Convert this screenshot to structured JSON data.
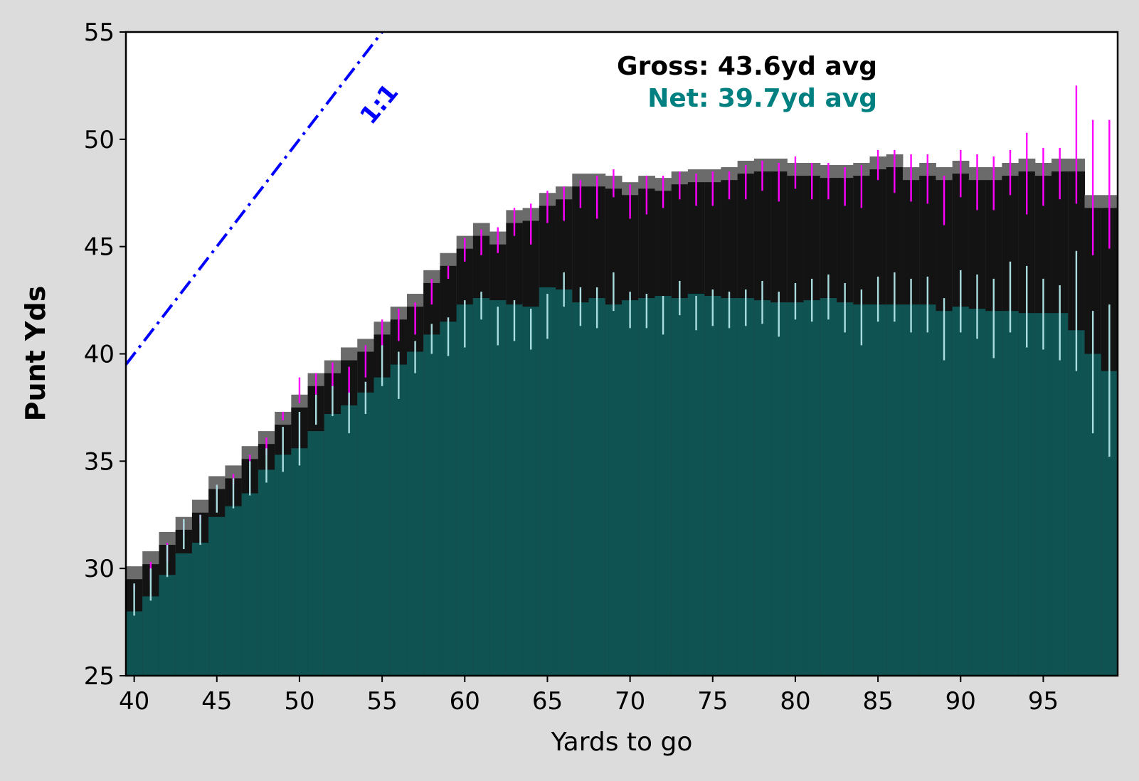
{
  "chart_data": {
    "type": "bar",
    "xlabel": "Yards to go",
    "ylabel": "Punt Yds",
    "xlim": [
      39.5,
      99.5
    ],
    "ylim": [
      25,
      55
    ],
    "xticks": [
      "40",
      "45",
      "50",
      "55",
      "60",
      "65",
      "70",
      "75",
      "80",
      "85",
      "90",
      "95"
    ],
    "yticks": [
      "25",
      "30",
      "35",
      "40",
      "45",
      "50",
      "55"
    ],
    "grid": false,
    "reference_line": {
      "label": "1:1",
      "style": "dashed",
      "color": "#0000ff",
      "slope": 1,
      "intercept": 0
    },
    "annotations": {
      "gross": "Gross: 43.6yd avg",
      "net": "Net: 39.7yd avg"
    },
    "colors": {
      "background": "#dcdcdc",
      "plot_background": "#ffffff",
      "gross_bar": "#0a0a0a",
      "gross_band": "#6b6b6b",
      "net_bar": "#0f5656",
      "gross_error": "#ff00ff",
      "net_error": "#aadde0",
      "reference_line": "#0000ff",
      "gross_text": "#000000",
      "net_text": "#008080"
    },
    "x": [
      40,
      41,
      42,
      43,
      44,
      45,
      46,
      47,
      48,
      49,
      50,
      51,
      52,
      53,
      54,
      55,
      56,
      57,
      58,
      59,
      60,
      61,
      62,
      63,
      64,
      65,
      66,
      67,
      68,
      69,
      70,
      71,
      72,
      73,
      74,
      75,
      76,
      77,
      78,
      79,
      80,
      81,
      82,
      83,
      84,
      85,
      86,
      87,
      88,
      89,
      90,
      91,
      92,
      93,
      94,
      95,
      96,
      97,
      98,
      99
    ],
    "series": [
      {
        "name": "Gross",
        "values": [
          29.5,
          30.2,
          31.1,
          31.8,
          32.6,
          33.7,
          34.2,
          35.1,
          35.8,
          36.7,
          37.5,
          38.5,
          39.1,
          39.7,
          40.1,
          40.9,
          41.6,
          42.2,
          43.3,
          44.1,
          44.9,
          45.5,
          45.1,
          46.1,
          46.2,
          46.9,
          47.2,
          47.8,
          47.8,
          47.7,
          47.4,
          47.7,
          47.6,
          47.9,
          48.0,
          48.0,
          48.1,
          48.4,
          48.5,
          48.5,
          48.3,
          48.3,
          48.2,
          48.2,
          48.3,
          48.6,
          48.7,
          48.1,
          48.3,
          48.1,
          48.4,
          48.1,
          48.1,
          48.3,
          48.5,
          48.3,
          48.5,
          48.5,
          46.8,
          46.8
        ],
        "err_low": [
          29.0,
          29.4,
          30.3,
          31.5,
          32.1,
          33.4,
          33.9,
          35.0,
          35.3,
          36.9,
          37.7,
          38.1,
          38.4,
          37.7,
          38.9,
          40.3,
          40.6,
          40.9,
          42.3,
          43.5,
          44.3,
          44.6,
          44.7,
          45.5,
          45.1,
          46.1,
          46.2,
          46.8,
          46.3,
          47.3,
          46.3,
          46.5,
          46.8,
          47.2,
          46.9,
          46.9,
          47.2,
          47.2,
          47.6,
          47.1,
          47.7,
          47.2,
          47.2,
          46.9,
          46.8,
          48.1,
          47.5,
          47.1,
          47.0,
          46.0,
          47.3,
          46.7,
          46.7,
          47.4,
          46.5,
          46.9,
          47.2,
          47.0,
          44.6,
          44.9
        ],
        "err_high": [
          29.2,
          30.3,
          31.2,
          32.2,
          32.5,
          33.9,
          34.4,
          35.3,
          36.1,
          37.3,
          38.9,
          39.1,
          39.6,
          39.4,
          40.4,
          41.6,
          42.1,
          42.4,
          43.5,
          44.1,
          45.4,
          45.8,
          45.9,
          46.8,
          47.0,
          47.6,
          47.8,
          48.1,
          48.3,
          48.6,
          47.9,
          48.3,
          48.3,
          48.5,
          48.4,
          48.5,
          48.5,
          48.8,
          49.0,
          48.9,
          49.2,
          48.9,
          48.9,
          48.7,
          48.8,
          49.5,
          49.5,
          49.3,
          49.3,
          48.3,
          49.5,
          49.3,
          49.2,
          49.5,
          50.3,
          49.6,
          49.6,
          52.5,
          50.9,
          50.9
        ]
      },
      {
        "name": "Net",
        "values": [
          28.0,
          28.7,
          29.7,
          30.7,
          31.2,
          32.4,
          32.9,
          33.5,
          34.6,
          35.3,
          35.6,
          36.4,
          37.2,
          37.6,
          38.2,
          38.9,
          39.5,
          40.1,
          40.9,
          41.5,
          42.3,
          42.6,
          42.5,
          42.3,
          42.2,
          43.1,
          43.0,
          42.4,
          42.6,
          42.3,
          42.5,
          42.6,
          42.7,
          42.6,
          42.8,
          42.7,
          42.6,
          42.6,
          42.5,
          42.4,
          42.4,
          42.5,
          42.6,
          42.4,
          42.3,
          42.3,
          42.3,
          42.3,
          42.3,
          42.0,
          42.2,
          42.1,
          42.0,
          42.0,
          41.9,
          41.9,
          41.9,
          41.1,
          40.0,
          39.2
        ],
        "err_low": [
          27.8,
          28.5,
          29.6,
          30.9,
          31.1,
          32.6,
          32.8,
          33.4,
          34.0,
          34.5,
          34.8,
          36.7,
          37.1,
          36.3,
          37.2,
          38.5,
          37.9,
          39.1,
          40.0,
          39.9,
          40.3,
          41.6,
          40.4,
          40.6,
          40.2,
          40.7,
          42.2,
          41.3,
          41.2,
          42.0,
          41.2,
          41.2,
          40.9,
          41.8,
          41.1,
          41.3,
          41.2,
          41.3,
          41.4,
          40.8,
          41.6,
          41.5,
          41.6,
          41.0,
          40.4,
          41.5,
          41.5,
          41.0,
          41.0,
          39.7,
          41.0,
          40.7,
          39.8,
          41.0,
          40.3,
          40.2,
          39.7,
          39.2,
          36.3,
          35.2
        ],
        "err_high": [
          29.3,
          30.0,
          31.1,
          32.3,
          32.5,
          33.9,
          34.2,
          35.0,
          35.6,
          36.6,
          37.3,
          38.1,
          38.5,
          38.2,
          38.7,
          40.4,
          40.1,
          40.6,
          41.4,
          41.7,
          42.5,
          42.9,
          42.2,
          42.5,
          42.1,
          42.8,
          43.8,
          43.1,
          43.1,
          43.8,
          42.9,
          42.8,
          42.7,
          43.4,
          42.7,
          43.0,
          42.9,
          43.0,
          43.4,
          42.9,
          43.3,
          43.5,
          43.7,
          43.3,
          43.0,
          43.6,
          43.8,
          43.5,
          43.6,
          42.6,
          43.9,
          43.7,
          43.5,
          44.3,
          44.1,
          43.5,
          43.2,
          44.8,
          42.0,
          42.3
        ]
      }
    ]
  }
}
